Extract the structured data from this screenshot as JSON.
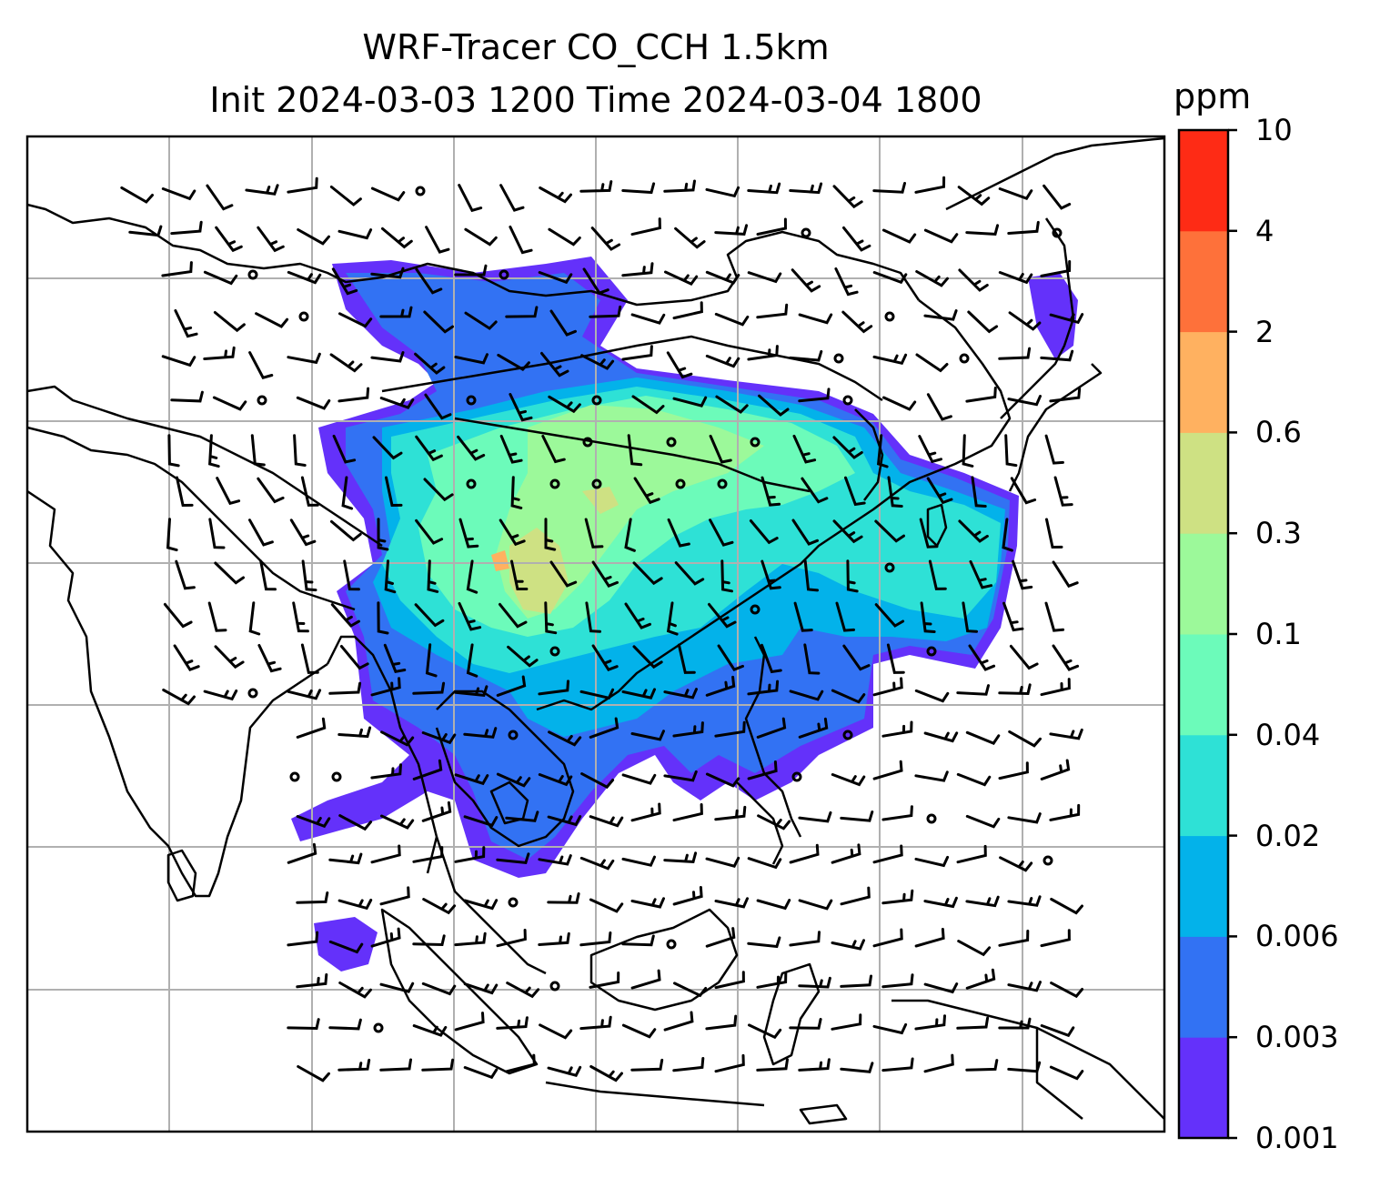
{
  "title": {
    "line1": "WRF-Tracer CO_CCH 1.5km",
    "line2": "Init 2024-03-03 1200 Time 2024-03-04 1800"
  },
  "colorbar": {
    "unit": "ppm",
    "ticks": [
      "0.001",
      "0.003",
      "0.006",
      "0.02",
      "0.04",
      "0.1",
      "0.3",
      "0.6",
      "2",
      "4",
      "10"
    ],
    "colors": [
      "#6431fa",
      "#3272f3",
      "#03b2ea",
      "#2ee1d6",
      "#6cfbba",
      "#9cf99a",
      "#cee183",
      "#ffb160",
      "#fe713a",
      "#fe2b15"
    ]
  },
  "map": {
    "gridlines": true,
    "coastline_color": "#000000",
    "field": "CO_CCH tracer concentration at 1.5km with wind barbs"
  }
}
